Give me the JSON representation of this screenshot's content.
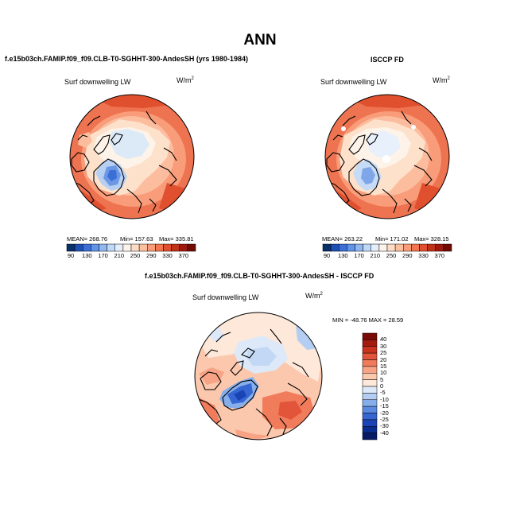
{
  "title": "ANN",
  "chart_data": [
    {
      "type": "heatmap",
      "projection": "north polar stereographic",
      "title": "f.e15b03ch.FAMIP.f09_f09.CLB-T0-SGHHT-300-AndesSH (yrs 1980-1984)",
      "variable": "Surf downwelling LW",
      "units": "W/m",
      "units_exp": "2",
      "stats": {
        "mean": "MEAN= 268.76",
        "min": "Min= 157.63",
        "max": "Max= 335.81"
      },
      "colorbar": {
        "ticks": [
          "90",
          "130",
          "170",
          "210",
          "250",
          "290",
          "330",
          "370"
        ],
        "colors": [
          "#08306b",
          "#1f4fb4",
          "#3a6fd8",
          "#5f94e8",
          "#8fb7f0",
          "#c0d8f6",
          "#e4eefb",
          "#fdf3e9",
          "#fddcc4",
          "#fcbfa0",
          "#fa9c78",
          "#f2764f",
          "#e0502e",
          "#c23218",
          "#9d1b0e",
          "#730b05"
        ]
      }
    },
    {
      "type": "heatmap",
      "projection": "north polar stereographic",
      "title": "ISCCP FD",
      "variable": "Surf downwelling LW",
      "units": "W/m",
      "units_exp": "2",
      "stats": {
        "mean": "MEAN= 263.22",
        "min": "Min= 171.02",
        "max": "Max= 328.15"
      },
      "colorbar": {
        "ticks": [
          "90",
          "130",
          "170",
          "210",
          "250",
          "290",
          "330",
          "370"
        ],
        "colors": [
          "#08306b",
          "#1f4fb4",
          "#3a6fd8",
          "#5f94e8",
          "#8fb7f0",
          "#c0d8f6",
          "#e4eefb",
          "#fdf3e9",
          "#fddcc4",
          "#fcbfa0",
          "#fa9c78",
          "#f2764f",
          "#e0502e",
          "#c23218",
          "#9d1b0e",
          "#730b05"
        ]
      }
    },
    {
      "type": "heatmap",
      "projection": "north polar stereographic",
      "title": "f.e15b03ch.FAMIP.f09_f09.CLB-T0-SGHHT-300-AndesSH - ISCCP FD",
      "variable": "Surf downwelling LW",
      "units": "W/m",
      "units_exp": "2",
      "stats": {
        "minmax": "MIN = -48.76 MAX =  28.59"
      },
      "colorbar": {
        "ticks": [
          "40",
          "30",
          "25",
          "20",
          "15",
          "10",
          "5",
          "0",
          "-5",
          "-10",
          "-15",
          "-20",
          "-25",
          "-30",
          "-40"
        ],
        "colors": [
          "#7a0c07",
          "#a51a0f",
          "#c9331d",
          "#e2553a",
          "#f07c5c",
          "#f8a385",
          "#fcc8ad",
          "#fde8d9",
          "#dde9f8",
          "#b3cef2",
          "#85aeea",
          "#5a8be0",
          "#3566d2",
          "#1a44b5",
          "#0a2c8c",
          "#061a66"
        ]
      }
    }
  ]
}
